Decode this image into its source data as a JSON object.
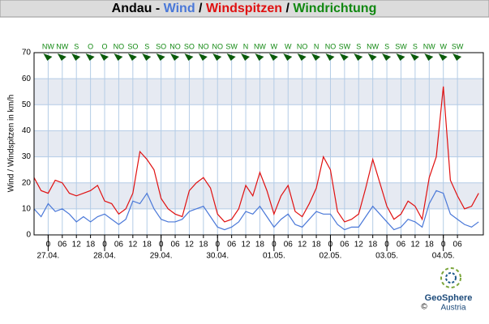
{
  "chart_data": {
    "type": "line",
    "title": {
      "station": "Andau -",
      "separator": "/",
      "direction_label": "Windrichtung",
      "direction_color": "#118811"
    },
    "y_label": "Wind / Windspitzen in km/h",
    "ylim": [
      0,
      70
    ],
    "yticks": [
      0,
      10,
      20,
      30,
      40,
      50,
      60,
      70
    ],
    "xlim": [
      -6,
      185
    ],
    "xticks": [
      {
        "value": 0,
        "label": "0"
      },
      {
        "value": 6,
        "label": "06"
      },
      {
        "value": 12,
        "label": "12"
      },
      {
        "value": 18,
        "label": "18"
      },
      {
        "value": 24,
        "label": "0"
      },
      {
        "value": 30,
        "label": "06"
      },
      {
        "value": 36,
        "label": "12"
      },
      {
        "value": 42,
        "label": "18"
      },
      {
        "value": 48,
        "label": "0"
      },
      {
        "value": 54,
        "label": "06"
      },
      {
        "value": 60,
        "label": "12"
      },
      {
        "value": 66,
        "label": "18"
      },
      {
        "value": 72,
        "label": "0"
      },
      {
        "value": 78,
        "label": "06"
      },
      {
        "value": 84,
        "label": "12"
      },
      {
        "value": 90,
        "label": "18"
      },
      {
        "value": 96,
        "label": "0"
      },
      {
        "value": 102,
        "label": "06"
      },
      {
        "value": 108,
        "label": "12"
      },
      {
        "value": 114,
        "label": "18"
      },
      {
        "value": 120,
        "label": "0"
      },
      {
        "value": 126,
        "label": "06"
      },
      {
        "value": 132,
        "label": "12"
      },
      {
        "value": 138,
        "label": "18"
      },
      {
        "value": 144,
        "label": "0"
      },
      {
        "value": 150,
        "label": "06"
      },
      {
        "value": 156,
        "label": "12"
      },
      {
        "value": 162,
        "label": "18"
      },
      {
        "value": 168,
        "label": "0"
      },
      {
        "value": 174,
        "label": "06"
      }
    ],
    "date_labels": [
      {
        "value": 0,
        "label": "27.04."
      },
      {
        "value": 24,
        "label": "28.04."
      },
      {
        "value": 48,
        "label": "29.04."
      },
      {
        "value": 72,
        "label": "30.04."
      },
      {
        "value": 96,
        "label": "01.05."
      },
      {
        "value": 120,
        "label": "02.05."
      },
      {
        "value": 144,
        "label": "03.05."
      },
      {
        "value": 168,
        "label": "04.05."
      }
    ],
    "directions": [
      "NW",
      "NW",
      "S",
      "O",
      "O",
      "NO",
      "SO",
      "S",
      "SO",
      "NO",
      "SO",
      "NO",
      "NO",
      "SW",
      "N",
      "NW",
      "W",
      "W",
      "NO",
      "N",
      "NO",
      "SW",
      "S",
      "NW",
      "S",
      "SW",
      "S",
      "NW",
      "W",
      "SW"
    ],
    "grid": true,
    "x": [
      -6,
      -3,
      0,
      3,
      6,
      9,
      12,
      15,
      18,
      21,
      24,
      27,
      30,
      33,
      36,
      39,
      42,
      45,
      48,
      51,
      54,
      57,
      60,
      63,
      66,
      69,
      72,
      75,
      78,
      81,
      84,
      87,
      90,
      93,
      96,
      99,
      102,
      105,
      108,
      111,
      114,
      117,
      120,
      123,
      126,
      129,
      132,
      135,
      138,
      141,
      144,
      147,
      150,
      153,
      156,
      159,
      162,
      165,
      168,
      171,
      174,
      177,
      180,
      183
    ],
    "series": [
      {
        "name": "Wind",
        "color": "#4a78d8",
        "values": [
          10,
          7,
          12,
          9,
          10,
          8,
          5,
          7,
          5,
          7,
          8,
          6,
          4,
          6,
          13,
          12,
          16,
          10,
          6,
          5,
          5,
          6,
          9,
          10,
          11,
          7,
          3,
          2,
          3,
          5,
          9,
          8,
          11,
          7,
          3,
          6,
          8,
          4,
          3,
          6,
          9,
          8,
          8,
          4,
          2,
          3,
          3,
          7,
          11,
          8,
          5,
          2,
          3,
          6,
          5,
          3,
          12,
          17,
          16,
          8,
          6,
          4,
          3,
          5
        ]
      },
      {
        "name": "Windspitzen",
        "color": "#e01010",
        "values": [
          22,
          17,
          16,
          21,
          20,
          16,
          15,
          16,
          17,
          19,
          13,
          12,
          8,
          10,
          16,
          32,
          29,
          25,
          14,
          10,
          8,
          7,
          17,
          20,
          22,
          18,
          8,
          5,
          6,
          10,
          19,
          15,
          24,
          17,
          8,
          15,
          19,
          9,
          7,
          12,
          18,
          30,
          25,
          9,
          5,
          6,
          8,
          18,
          29,
          20,
          11,
          6,
          8,
          13,
          11,
          6,
          22,
          30,
          57,
          21,
          15,
          10,
          11,
          16
        ]
      }
    ],
    "logo": {
      "name": "GeoSphere",
      "sub": "Austria",
      "copyright": "©"
    }
  }
}
